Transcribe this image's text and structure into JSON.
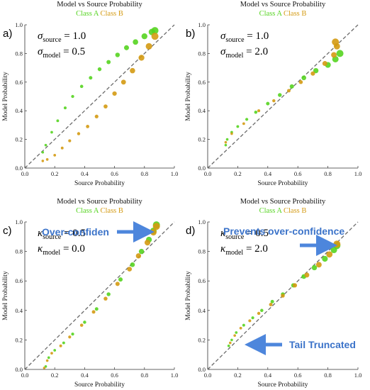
{
  "colors": {
    "class_a": "#55d420",
    "class_b": "#d49a12",
    "mix": "#8fb426",
    "arrow": "#4d86dc",
    "annot": "#3b73c9",
    "diagonal": "#6b6b6b"
  },
  "chart_data": [
    {
      "type": "scatter",
      "panel_label": "a)",
      "title": "Model vs Source Probability",
      "legend": [
        "Class A",
        "Class B"
      ],
      "xlabel": "Source  Probability",
      "ylabel": "Model  Probability",
      "xlim": [
        0,
        1
      ],
      "ylim": [
        0,
        1
      ],
      "xticks": [
        "0.0",
        "0.2",
        "0.4",
        "0.6",
        "0.8",
        "1.0"
      ],
      "yticks": [
        "0.0",
        "0.2",
        "0.4",
        "0.6",
        "0.8",
        "1.0"
      ],
      "params": [
        {
          "sym": "σ",
          "sub": "source",
          "value": "1.0"
        },
        {
          "sym": "σ",
          "sub": "model",
          "value": "0.5"
        }
      ],
      "series": [
        {
          "name": "Class A",
          "values": [
            [
              0.12,
              0.11
            ],
            [
              0.14,
              0.16
            ],
            [
              0.18,
              0.25
            ],
            [
              0.22,
              0.33
            ],
            [
              0.27,
              0.42
            ],
            [
              0.32,
              0.5
            ],
            [
              0.38,
              0.57
            ],
            [
              0.44,
              0.63
            ],
            [
              0.5,
              0.69
            ],
            [
              0.56,
              0.74
            ],
            [
              0.62,
              0.79
            ],
            [
              0.68,
              0.84
            ],
            [
              0.74,
              0.88
            ],
            [
              0.8,
              0.92
            ],
            [
              0.85,
              0.95
            ],
            [
              0.87,
              0.96
            ]
          ]
        },
        {
          "name": "Class B",
          "values": [
            [
              0.12,
              0.05
            ],
            [
              0.15,
              0.06
            ],
            [
              0.2,
              0.09
            ],
            [
              0.25,
              0.14
            ],
            [
              0.3,
              0.19
            ],
            [
              0.36,
              0.24
            ],
            [
              0.42,
              0.29
            ],
            [
              0.48,
              0.36
            ],
            [
              0.54,
              0.43
            ],
            [
              0.6,
              0.52
            ],
            [
              0.66,
              0.6
            ],
            [
              0.72,
              0.68
            ],
            [
              0.78,
              0.77
            ],
            [
              0.83,
              0.85
            ],
            [
              0.87,
              0.92
            ]
          ]
        }
      ],
      "diagonal": true,
      "annotations": []
    },
    {
      "type": "scatter",
      "panel_label": "b)",
      "title": "Model vs Source Probability",
      "legend": [
        "Class A",
        "Class B"
      ],
      "xlabel": "Source  Probability",
      "ylabel": "Model  Probability",
      "xlim": [
        0,
        1
      ],
      "ylim": [
        0,
        1
      ],
      "xticks": [
        "0.0",
        "0.2",
        "0.4",
        "0.6",
        "0.8",
        "1.0"
      ],
      "yticks": [
        "0.0",
        "0.2",
        "0.4",
        "0.6",
        "0.8",
        "1.0"
      ],
      "params": [
        {
          "sym": "σ",
          "sub": "source",
          "value": "1.0"
        },
        {
          "sym": "σ",
          "sub": "model",
          "value": "2.0"
        }
      ],
      "series": [
        {
          "name": "Class A",
          "values": [
            [
              0.12,
              0.16
            ],
            [
              0.13,
              0.2
            ],
            [
              0.16,
              0.25
            ],
            [
              0.2,
              0.29
            ],
            [
              0.26,
              0.34
            ],
            [
              0.32,
              0.39
            ],
            [
              0.4,
              0.45
            ],
            [
              0.48,
              0.51
            ],
            [
              0.56,
              0.57
            ],
            [
              0.64,
              0.63
            ],
            [
              0.72,
              0.68
            ],
            [
              0.8,
              0.72
            ],
            [
              0.85,
              0.76
            ],
            [
              0.88,
              0.8
            ]
          ]
        },
        {
          "name": "Class B",
          "values": [
            [
              0.12,
              0.18
            ],
            [
              0.16,
              0.24
            ],
            [
              0.24,
              0.31
            ],
            [
              0.34,
              0.4
            ],
            [
              0.44,
              0.47
            ],
            [
              0.54,
              0.54
            ],
            [
              0.62,
              0.6
            ],
            [
              0.7,
              0.66
            ],
            [
              0.78,
              0.73
            ],
            [
              0.84,
              0.79
            ],
            [
              0.86,
              0.85
            ],
            [
              0.85,
              0.88
            ]
          ]
        }
      ],
      "diagonal": true,
      "annotations": []
    },
    {
      "type": "scatter",
      "panel_label": "c)",
      "title": "Model vs Source Probability",
      "legend": [
        "Class A",
        "Class B"
      ],
      "xlabel": "Source  Probability",
      "ylabel": "Model  Probability",
      "xlim": [
        0,
        1
      ],
      "ylim": [
        0,
        1
      ],
      "xticks": [
        "0.0",
        "0.2",
        "0.4",
        "0.6",
        "0.8",
        "1.0"
      ],
      "yticks": [
        "0.0",
        "0.2",
        "0.4",
        "0.6",
        "0.8",
        "1.0"
      ],
      "params": [
        {
          "sym": "κ",
          "sub": "source",
          "value": "0.5"
        },
        {
          "sym": "κ",
          "sub": "model",
          "value": "0.0"
        }
      ],
      "series": [
        {
          "name": "Class A",
          "values": [
            [
              0.14,
              0.02
            ],
            [
              0.16,
              0.08
            ],
            [
              0.2,
              0.13
            ],
            [
              0.26,
              0.18
            ],
            [
              0.32,
              0.24
            ],
            [
              0.4,
              0.32
            ],
            [
              0.48,
              0.41
            ],
            [
              0.56,
              0.51
            ],
            [
              0.64,
              0.61
            ],
            [
              0.72,
              0.71
            ],
            [
              0.78,
              0.8
            ],
            [
              0.83,
              0.88
            ],
            [
              0.86,
              0.94
            ],
            [
              0.88,
              0.98
            ]
          ]
        },
        {
          "name": "Class B",
          "values": [
            [
              0.13,
              0.01
            ],
            [
              0.15,
              0.06
            ],
            [
              0.18,
              0.11
            ],
            [
              0.24,
              0.16
            ],
            [
              0.3,
              0.22
            ],
            [
              0.38,
              0.3
            ],
            [
              0.46,
              0.39
            ],
            [
              0.54,
              0.48
            ],
            [
              0.62,
              0.58
            ],
            [
              0.7,
              0.68
            ],
            [
              0.76,
              0.77
            ],
            [
              0.82,
              0.86
            ],
            [
              0.86,
              0.93
            ],
            [
              0.88,
              0.97
            ]
          ]
        }
      ],
      "diagonal": true,
      "annotations": [
        "Over-confiden"
      ]
    },
    {
      "type": "scatter",
      "panel_label": "d)",
      "title": "Model vs Source Probability",
      "legend": [
        "Class A",
        "Class B"
      ],
      "xlabel": "Source  Probability",
      "ylabel": "Model  Probability",
      "xlim": [
        0,
        1
      ],
      "ylim": [
        0,
        1
      ],
      "xticks": [
        "0.0",
        "0.2",
        "0.4",
        "0.6",
        "0.8",
        "1.0"
      ],
      "yticks": [
        "0.0",
        "0.2",
        "0.4",
        "0.6",
        "0.8",
        "1.0"
      ],
      "params": [
        {
          "sym": "κ",
          "sub": "source",
          "value": "0.5"
        },
        {
          "sym": "κ",
          "sub": "model",
          "value": "2.0"
        }
      ],
      "series": [
        {
          "name": "Class A",
          "values": [
            [
              0.14,
              0.16
            ],
            [
              0.16,
              0.2
            ],
            [
              0.19,
              0.25
            ],
            [
              0.24,
              0.3
            ],
            [
              0.3,
              0.35
            ],
            [
              0.36,
              0.4
            ],
            [
              0.43,
              0.46
            ],
            [
              0.5,
              0.51
            ],
            [
              0.57,
              0.57
            ],
            [
              0.64,
              0.63
            ],
            [
              0.71,
              0.69
            ],
            [
              0.78,
              0.75
            ],
            [
              0.84,
              0.81
            ],
            [
              0.86,
              0.84
            ]
          ]
        },
        {
          "name": "Class B",
          "values": [
            [
              0.15,
              0.18
            ],
            [
              0.18,
              0.23
            ],
            [
              0.22,
              0.28
            ],
            [
              0.28,
              0.33
            ],
            [
              0.34,
              0.38
            ],
            [
              0.42,
              0.44
            ],
            [
              0.5,
              0.5
            ],
            [
              0.58,
              0.57
            ],
            [
              0.66,
              0.64
            ],
            [
              0.74,
              0.71
            ],
            [
              0.81,
              0.78
            ],
            [
              0.86,
              0.85
            ]
          ]
        }
      ],
      "diagonal": true,
      "annotations": [
        "Prevents over-confidence",
        "Tail Truncated"
      ]
    }
  ]
}
